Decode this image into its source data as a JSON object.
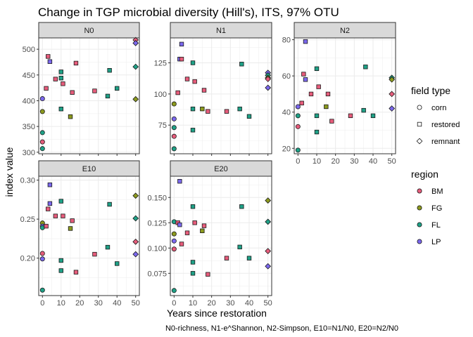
{
  "chart_data": {
    "type": "scatter",
    "title": "Change in TGP microbial diversity (Hill's), ITS, 97% OTU",
    "xlabel": "Years since restoration",
    "ylabel": "index value",
    "caption": "N0-richness, N1-e^Shannon, N2-Simpson, E10=N1/N0, E20=N2/N0",
    "x_ticks": [
      0,
      10,
      20,
      30,
      40,
      50
    ],
    "x_tick_labels": [
      "0",
      "10",
      "20",
      "30",
      "40",
      "50"
    ],
    "xlim": [
      -2,
      52
    ],
    "grid": true,
    "legends": {
      "field_type": {
        "title": "field type",
        "entries": [
          {
            "label": "corn",
            "shape": "circle"
          },
          {
            "label": "restored",
            "shape": "square"
          },
          {
            "label": "remnant",
            "shape": "diamond"
          }
        ]
      },
      "region": {
        "title": "region",
        "entries": [
          {
            "label": "BM",
            "color": "#E65C7B"
          },
          {
            "label": "FG",
            "color": "#8C9A1E"
          },
          {
            "label": "FL",
            "color": "#1FA187"
          },
          {
            "label": "LP",
            "color": "#7B68EE"
          }
        ]
      }
    },
    "panels": [
      {
        "strip": "N0",
        "ylim": [
          297,
          522
        ],
        "y_ticks": [
          300,
          350,
          400,
          450,
          500
        ],
        "y_tick_labels": [
          "300",
          "350",
          "400",
          "450",
          "500"
        ],
        "points": [
          {
            "x": 0,
            "y": 320,
            "shape": "circle",
            "region": "BM"
          },
          {
            "x": 0,
            "y": 379,
            "shape": "circle",
            "region": "FG"
          },
          {
            "x": 0,
            "y": 338,
            "shape": "circle",
            "region": "FL"
          },
          {
            "x": 0,
            "y": 307,
            "shape": "circle",
            "region": "FL"
          },
          {
            "x": 0,
            "y": 404,
            "shape": "circle",
            "region": "LP"
          },
          {
            "x": 2,
            "y": 424,
            "shape": "square",
            "region": "BM"
          },
          {
            "x": 3,
            "y": 486,
            "shape": "square",
            "region": "BM"
          },
          {
            "x": 4,
            "y": 476,
            "shape": "square",
            "region": "LP"
          },
          {
            "x": 7,
            "y": 442,
            "shape": "square",
            "region": "BM"
          },
          {
            "x": 10,
            "y": 444,
            "shape": "square",
            "region": "FL"
          },
          {
            "x": 10,
            "y": 456,
            "shape": "square",
            "region": "FL"
          },
          {
            "x": 10,
            "y": 384,
            "shape": "square",
            "region": "FL"
          },
          {
            "x": 11,
            "y": 433,
            "shape": "square",
            "region": "BM"
          },
          {
            "x": 15,
            "y": 369,
            "shape": "square",
            "region": "FG"
          },
          {
            "x": 16,
            "y": 416,
            "shape": "square",
            "region": "BM"
          },
          {
            "x": 18,
            "y": 473,
            "shape": "square",
            "region": "BM"
          },
          {
            "x": 28,
            "y": 419,
            "shape": "square",
            "region": "BM"
          },
          {
            "x": 35,
            "y": 409,
            "shape": "square",
            "region": "FL"
          },
          {
            "x": 36,
            "y": 459,
            "shape": "square",
            "region": "FL"
          },
          {
            "x": 40,
            "y": 424,
            "shape": "square",
            "region": "FL"
          },
          {
            "x": 50,
            "y": 518,
            "shape": "diamond",
            "region": "BM"
          },
          {
            "x": 50,
            "y": 512,
            "shape": "diamond",
            "region": "LP"
          },
          {
            "x": 50,
            "y": 466,
            "shape": "diamond",
            "region": "FL"
          },
          {
            "x": 50,
            "y": 403,
            "shape": "diamond",
            "region": "FG"
          }
        ]
      },
      {
        "strip": "N1",
        "ylim": [
          52,
          145
        ],
        "y_ticks": [
          75,
          100,
          125
        ],
        "y_tick_labels": [
          "75",
          "100",
          "125"
        ],
        "points": [
          {
            "x": 0,
            "y": 92,
            "shape": "circle",
            "region": "FG"
          },
          {
            "x": 0,
            "y": 80,
            "shape": "circle",
            "region": "LP"
          },
          {
            "x": 0,
            "y": 73,
            "shape": "circle",
            "region": "FL"
          },
          {
            "x": 0,
            "y": 66,
            "shape": "circle",
            "region": "BM"
          },
          {
            "x": 0,
            "y": 56,
            "shape": "circle",
            "region": "FL"
          },
          {
            "x": 2,
            "y": 101,
            "shape": "square",
            "region": "BM"
          },
          {
            "x": 3,
            "y": 128,
            "shape": "square",
            "region": "LP"
          },
          {
            "x": 4,
            "y": 128,
            "shape": "square",
            "region": "BM"
          },
          {
            "x": 4,
            "y": 140,
            "shape": "square",
            "region": "LP"
          },
          {
            "x": 7,
            "y": 112,
            "shape": "square",
            "region": "BM"
          },
          {
            "x": 10,
            "y": 125,
            "shape": "square",
            "region": "FL"
          },
          {
            "x": 10,
            "y": 88,
            "shape": "square",
            "region": "FL"
          },
          {
            "x": 10,
            "y": 71,
            "shape": "square",
            "region": "FL"
          },
          {
            "x": 11,
            "y": 110,
            "shape": "square",
            "region": "BM"
          },
          {
            "x": 15,
            "y": 88,
            "shape": "square",
            "region": "FG"
          },
          {
            "x": 16,
            "y": 103,
            "shape": "square",
            "region": "BM"
          },
          {
            "x": 18,
            "y": 86,
            "shape": "square",
            "region": "BM"
          },
          {
            "x": 28,
            "y": 86,
            "shape": "square",
            "region": "BM"
          },
          {
            "x": 35,
            "y": 88,
            "shape": "square",
            "region": "FL"
          },
          {
            "x": 36,
            "y": 124,
            "shape": "square",
            "region": "FL"
          },
          {
            "x": 40,
            "y": 82,
            "shape": "square",
            "region": "FL"
          },
          {
            "x": 50,
            "y": 117,
            "shape": "diamond",
            "region": "LP"
          },
          {
            "x": 50,
            "y": 115,
            "shape": "diamond",
            "region": "FL"
          },
          {
            "x": 50,
            "y": 113,
            "shape": "diamond",
            "region": "FG"
          },
          {
            "x": 50,
            "y": 112,
            "shape": "diamond",
            "region": "BM"
          },
          {
            "x": 50,
            "y": 105,
            "shape": "diamond",
            "region": "LP"
          }
        ]
      },
      {
        "strip": "N2",
        "ylim": [
          17,
          81
        ],
        "y_ticks": [
          20,
          40,
          60,
          80
        ],
        "y_tick_labels": [
          "20",
          "40",
          "60",
          "80"
        ],
        "points": [
          {
            "x": 0,
            "y": 43,
            "shape": "circle",
            "region": "LP"
          },
          {
            "x": 0,
            "y": 38,
            "shape": "circle",
            "region": "FL"
          },
          {
            "x": 0,
            "y": 32,
            "shape": "circle",
            "region": "BM"
          },
          {
            "x": 0,
            "y": 19,
            "shape": "circle",
            "region": "FL"
          },
          {
            "x": 2,
            "y": 45,
            "shape": "square",
            "region": "BM"
          },
          {
            "x": 3,
            "y": 61,
            "shape": "square",
            "region": "BM"
          },
          {
            "x": 4,
            "y": 79,
            "shape": "square",
            "region": "LP"
          },
          {
            "x": 4,
            "y": 58,
            "shape": "square",
            "region": "LP"
          },
          {
            "x": 7,
            "y": 50,
            "shape": "square",
            "region": "BM"
          },
          {
            "x": 10,
            "y": 64,
            "shape": "square",
            "region": "FL"
          },
          {
            "x": 10,
            "y": 38,
            "shape": "square",
            "region": "FL"
          },
          {
            "x": 10,
            "y": 29,
            "shape": "square",
            "region": "FL"
          },
          {
            "x": 11,
            "y": 54,
            "shape": "square",
            "region": "BM"
          },
          {
            "x": 15,
            "y": 43,
            "shape": "square",
            "region": "FG"
          },
          {
            "x": 16,
            "y": 50,
            "shape": "square",
            "region": "BM"
          },
          {
            "x": 18,
            "y": 35,
            "shape": "square",
            "region": "BM"
          },
          {
            "x": 28,
            "y": 38,
            "shape": "square",
            "region": "BM"
          },
          {
            "x": 35,
            "y": 41,
            "shape": "square",
            "region": "FL"
          },
          {
            "x": 36,
            "y": 65,
            "shape": "square",
            "region": "FL"
          },
          {
            "x": 40,
            "y": 38,
            "shape": "square",
            "region": "FL"
          },
          {
            "x": 50,
            "y": 59,
            "shape": "diamond",
            "region": "FL"
          },
          {
            "x": 50,
            "y": 58,
            "shape": "diamond",
            "region": "FG"
          },
          {
            "x": 50,
            "y": 50,
            "shape": "diamond",
            "region": "BM"
          },
          {
            "x": 50,
            "y": 42,
            "shape": "diamond",
            "region": "LP"
          }
        ]
      },
      {
        "strip": "E10",
        "ylim": [
          0.152,
          0.305
        ],
        "y_ticks": [
          0.2,
          0.25,
          0.3
        ],
        "y_tick_labels": [
          "0.20",
          "0.25",
          "0.30"
        ],
        "points": [
          {
            "x": 0,
            "y": 0.245,
            "shape": "circle",
            "region": "FG"
          },
          {
            "x": 0,
            "y": 0.241,
            "shape": "circle",
            "region": "LP"
          },
          {
            "x": 0,
            "y": 0.239,
            "shape": "circle",
            "region": "FL"
          },
          {
            "x": 0,
            "y": 0.206,
            "shape": "circle",
            "region": "BM"
          },
          {
            "x": 0,
            "y": 0.199,
            "shape": "circle",
            "region": "LP"
          },
          {
            "x": 0,
            "y": 0.159,
            "shape": "circle",
            "region": "FL"
          },
          {
            "x": 2,
            "y": 0.241,
            "shape": "square",
            "region": "BM"
          },
          {
            "x": 3,
            "y": 0.263,
            "shape": "square",
            "region": "BM"
          },
          {
            "x": 4,
            "y": 0.294,
            "shape": "square",
            "region": "LP"
          },
          {
            "x": 4,
            "y": 0.27,
            "shape": "square",
            "region": "LP"
          },
          {
            "x": 7,
            "y": 0.254,
            "shape": "square",
            "region": "BM"
          },
          {
            "x": 10,
            "y": 0.273,
            "shape": "square",
            "region": "FL"
          },
          {
            "x": 10,
            "y": 0.197,
            "shape": "square",
            "region": "FL"
          },
          {
            "x": 10,
            "y": 0.184,
            "shape": "square",
            "region": "FL"
          },
          {
            "x": 11,
            "y": 0.254,
            "shape": "square",
            "region": "BM"
          },
          {
            "x": 15,
            "y": 0.238,
            "shape": "square",
            "region": "FG"
          },
          {
            "x": 16,
            "y": 0.248,
            "shape": "square",
            "region": "BM"
          },
          {
            "x": 18,
            "y": 0.182,
            "shape": "square",
            "region": "BM"
          },
          {
            "x": 28,
            "y": 0.205,
            "shape": "square",
            "region": "BM"
          },
          {
            "x": 35,
            "y": 0.214,
            "shape": "square",
            "region": "FL"
          },
          {
            "x": 36,
            "y": 0.269,
            "shape": "square",
            "region": "FL"
          },
          {
            "x": 40,
            "y": 0.193,
            "shape": "square",
            "region": "FL"
          },
          {
            "x": 50,
            "y": 0.28,
            "shape": "diamond",
            "region": "FG"
          },
          {
            "x": 50,
            "y": 0.251,
            "shape": "diamond",
            "region": "FL"
          },
          {
            "x": 50,
            "y": 0.221,
            "shape": "diamond",
            "region": "BM"
          },
          {
            "x": 50,
            "y": 0.205,
            "shape": "diamond",
            "region": "LP"
          }
        ]
      },
      {
        "strip": "E20",
        "ylim": [
          0.053,
          0.171
        ],
        "y_ticks": [
          0.075,
          0.1,
          0.125,
          0.15
        ],
        "y_tick_labels": [
          "0.075",
          "0.100",
          "0.125",
          "0.150"
        ],
        "points": [
          {
            "x": 0,
            "y": 0.126,
            "shape": "circle",
            "region": "FL"
          },
          {
            "x": 0,
            "y": 0.114,
            "shape": "circle",
            "region": "FG"
          },
          {
            "x": 0,
            "y": 0.107,
            "shape": "circle",
            "region": "LP"
          },
          {
            "x": 0,
            "y": 0.099,
            "shape": "circle",
            "region": "BM"
          },
          {
            "x": 0,
            "y": 0.058,
            "shape": "circle",
            "region": "FL"
          },
          {
            "x": 2,
            "y": 0.125,
            "shape": "square",
            "region": "BM"
          },
          {
            "x": 3,
            "y": 0.123,
            "shape": "square",
            "region": "LP"
          },
          {
            "x": 3,
            "y": 0.166,
            "shape": "square",
            "region": "LP"
          },
          {
            "x": 4,
            "y": 0.104,
            "shape": "square",
            "region": "BM"
          },
          {
            "x": 7,
            "y": 0.115,
            "shape": "square",
            "region": "BM"
          },
          {
            "x": 10,
            "y": 0.141,
            "shape": "square",
            "region": "FL"
          },
          {
            "x": 10,
            "y": 0.086,
            "shape": "square",
            "region": "FL"
          },
          {
            "x": 10,
            "y": 0.075,
            "shape": "square",
            "region": "FL"
          },
          {
            "x": 11,
            "y": 0.125,
            "shape": "square",
            "region": "BM"
          },
          {
            "x": 15,
            "y": 0.117,
            "shape": "square",
            "region": "FG"
          },
          {
            "x": 16,
            "y": 0.122,
            "shape": "square",
            "region": "BM"
          },
          {
            "x": 18,
            "y": 0.074,
            "shape": "square",
            "region": "BM"
          },
          {
            "x": 28,
            "y": 0.09,
            "shape": "square",
            "region": "BM"
          },
          {
            "x": 35,
            "y": 0.101,
            "shape": "square",
            "region": "FL"
          },
          {
            "x": 36,
            "y": 0.141,
            "shape": "square",
            "region": "FL"
          },
          {
            "x": 40,
            "y": 0.09,
            "shape": "square",
            "region": "FL"
          },
          {
            "x": 50,
            "y": 0.147,
            "shape": "diamond",
            "region": "FG"
          },
          {
            "x": 50,
            "y": 0.126,
            "shape": "diamond",
            "region": "FL"
          },
          {
            "x": 50,
            "y": 0.097,
            "shape": "diamond",
            "region": "BM"
          },
          {
            "x": 50,
            "y": 0.082,
            "shape": "diamond",
            "region": "LP"
          }
        ]
      }
    ]
  }
}
